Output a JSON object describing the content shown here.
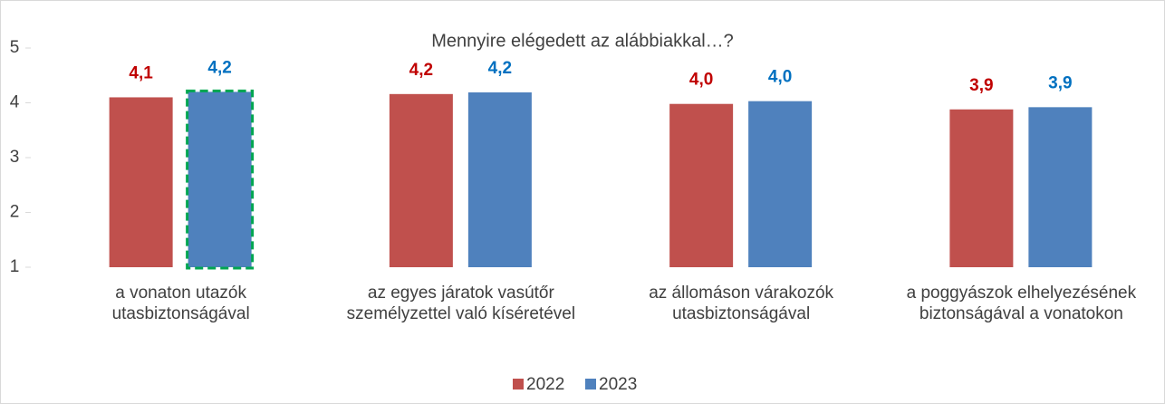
{
  "chart_data": {
    "type": "bar",
    "title": "Mennyire elégedett az alábbiakkal…?",
    "categories": [
      "a vonaton utazók utasbiztonságával",
      "az egyes járatok vasútőr személyzettel való kíséretével",
      "az állomáson várakozók utasbiztonságával",
      "a poggyászok elhelyezésének biztonságával a vonatokon"
    ],
    "series": [
      {
        "name": "2022",
        "color": "#c0504d",
        "label_color": "#c00000",
        "values": [
          4.1,
          4.16,
          3.98,
          3.88
        ],
        "value_labels": [
          "4,1",
          "4,2",
          "4,0",
          "3,9"
        ]
      },
      {
        "name": "2023",
        "color": "#4f81bd",
        "label_color": "#0070c0",
        "values": [
          4.2,
          4.19,
          4.03,
          3.92
        ],
        "value_labels": [
          "4,2",
          "4,2",
          "4,0",
          "3,9"
        ]
      }
    ],
    "ylim": [
      1,
      5
    ],
    "yticks": [
      1,
      2,
      3,
      4,
      5
    ],
    "grid": false,
    "legend": "bottom"
  }
}
